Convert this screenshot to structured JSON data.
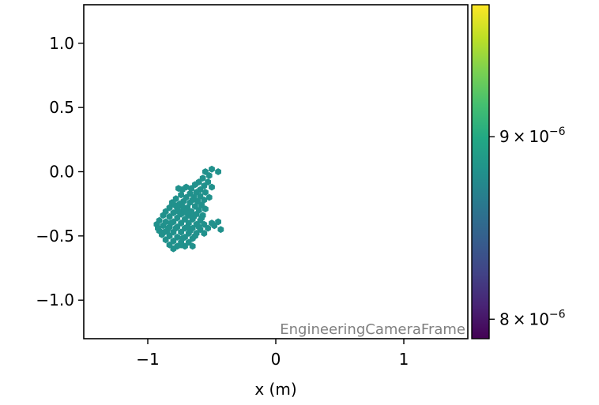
{
  "chart_data": {
    "type": "scatter",
    "marker": "hexagon",
    "title": "",
    "xlabel": "x  (m)",
    "ylabel": "",
    "xlim": [
      -1.5,
      1.5
    ],
    "ylim": [
      -1.3,
      1.3
    ],
    "x_ticks": [
      -1,
      0,
      1
    ],
    "x_tick_labels": [
      "−1",
      "0",
      "1"
    ],
    "y_ticks": [
      1.0,
      0.5,
      0.0,
      -0.5,
      -1.0
    ],
    "y_tick_labels": [
      "1.0",
      "0.5",
      "0.0",
      "−0.5",
      "−1.0"
    ],
    "grid": false,
    "annotation": "EngineeringCameraFrame",
    "colorbar": {
      "colormap": "viridis",
      "scale": "log",
      "range": [
        7.9e-06,
        9.8e-06
      ],
      "ticks": [
        8e-06,
        9e-06
      ],
      "tick_labels": [
        {
          "mantissa": "8",
          "exponent": "−6"
        },
        {
          "mantissa": "9",
          "exponent": "−6"
        }
      ]
    },
    "point_value": 8.9e-06,
    "point_color": "#21918c",
    "points": [
      [
        -0.5,
        0.02
      ],
      [
        -0.45,
        0.0
      ],
      [
        -0.55,
        0.0
      ],
      [
        -0.52,
        -0.03
      ],
      [
        -0.57,
        -0.05
      ],
      [
        -0.53,
        -0.08
      ],
      [
        -0.6,
        -0.08
      ],
      [
        -0.56,
        -0.11
      ],
      [
        -0.63,
        -0.1
      ],
      [
        -0.5,
        -0.12
      ],
      [
        -0.66,
        -0.13
      ],
      [
        -0.59,
        -0.14
      ],
      [
        -0.7,
        -0.12
      ],
      [
        -0.62,
        -0.16
      ],
      [
        -0.55,
        -0.16
      ],
      [
        -0.67,
        -0.17
      ],
      [
        -0.73,
        -0.14
      ],
      [
        -0.76,
        -0.13
      ],
      [
        -0.59,
        -0.19
      ],
      [
        -0.64,
        -0.2
      ],
      [
        -0.7,
        -0.2
      ],
      [
        -0.74,
        -0.18
      ],
      [
        -0.52,
        -0.2
      ],
      [
        -0.56,
        -0.22
      ],
      [
        -0.61,
        -0.23
      ],
      [
        -0.67,
        -0.24
      ],
      [
        -0.72,
        -0.23
      ],
      [
        -0.78,
        -0.21
      ],
      [
        -0.75,
        -0.25
      ],
      [
        -0.81,
        -0.24
      ],
      [
        -0.58,
        -0.26
      ],
      [
        -0.63,
        -0.27
      ],
      [
        -0.69,
        -0.28
      ],
      [
        -0.55,
        -0.29
      ],
      [
        -0.6,
        -0.3
      ],
      [
        -0.66,
        -0.31
      ],
      [
        -0.72,
        -0.3
      ],
      [
        -0.77,
        -0.29
      ],
      [
        -0.83,
        -0.28
      ],
      [
        -0.86,
        -0.31
      ],
      [
        -0.8,
        -0.32
      ],
      [
        -0.74,
        -0.33
      ],
      [
        -0.68,
        -0.34
      ],
      [
        -0.62,
        -0.33
      ],
      [
        -0.57,
        -0.34
      ],
      [
        -0.88,
        -0.34
      ],
      [
        -0.83,
        -0.35
      ],
      [
        -0.77,
        -0.36
      ],
      [
        -0.71,
        -0.37
      ],
      [
        -0.65,
        -0.37
      ],
      [
        -0.59,
        -0.38
      ],
      [
        -0.91,
        -0.38
      ],
      [
        -0.86,
        -0.39
      ],
      [
        -0.8,
        -0.39
      ],
      [
        -0.74,
        -0.4
      ],
      [
        -0.68,
        -0.4
      ],
      [
        -0.62,
        -0.41
      ],
      [
        -0.56,
        -0.41
      ],
      [
        -0.5,
        -0.4
      ],
      [
        -0.45,
        -0.39
      ],
      [
        -0.93,
        -0.41
      ],
      [
        -0.88,
        -0.42
      ],
      [
        -0.83,
        -0.43
      ],
      [
        -0.77,
        -0.43
      ],
      [
        -0.71,
        -0.44
      ],
      [
        -0.65,
        -0.44
      ],
      [
        -0.59,
        -0.45
      ],
      [
        -0.53,
        -0.44
      ],
      [
        -0.48,
        -0.42
      ],
      [
        -0.43,
        -0.45
      ],
      [
        -0.91,
        -0.46
      ],
      [
        -0.85,
        -0.46
      ],
      [
        -0.8,
        -0.47
      ],
      [
        -0.74,
        -0.47
      ],
      [
        -0.68,
        -0.48
      ],
      [
        -0.62,
        -0.48
      ],
      [
        -0.56,
        -0.48
      ],
      [
        -0.89,
        -0.49
      ],
      [
        -0.83,
        -0.5
      ],
      [
        -0.77,
        -0.51
      ],
      [
        -0.71,
        -0.51
      ],
      [
        -0.65,
        -0.52
      ],
      [
        -0.86,
        -0.53
      ],
      [
        -0.8,
        -0.54
      ],
      [
        -0.74,
        -0.55
      ],
      [
        -0.68,
        -0.55
      ],
      [
        -0.83,
        -0.57
      ],
      [
        -0.77,
        -0.58
      ],
      [
        -0.71,
        -0.58
      ],
      [
        -0.65,
        -0.58
      ],
      [
        -0.8,
        -0.6
      ],
      [
        -0.74,
        -0.57
      ],
      [
        -0.84,
        -0.44
      ],
      [
        -0.87,
        -0.47
      ],
      [
        -0.92,
        -0.44
      ],
      [
        -0.63,
        -0.5
      ],
      [
        -0.67,
        -0.46
      ],
      [
        -0.73,
        -0.52
      ],
      [
        -0.78,
        -0.44
      ],
      [
        -0.82,
        -0.4
      ],
      [
        -0.69,
        -0.43
      ],
      [
        -0.6,
        -0.43
      ],
      [
        -0.64,
        -0.35
      ],
      [
        -0.7,
        -0.32
      ],
      [
        -0.76,
        -0.31
      ],
      [
        -0.79,
        -0.26
      ],
      [
        -0.73,
        -0.27
      ],
      [
        -0.65,
        -0.22
      ],
      [
        -0.58,
        -0.36
      ]
    ]
  }
}
